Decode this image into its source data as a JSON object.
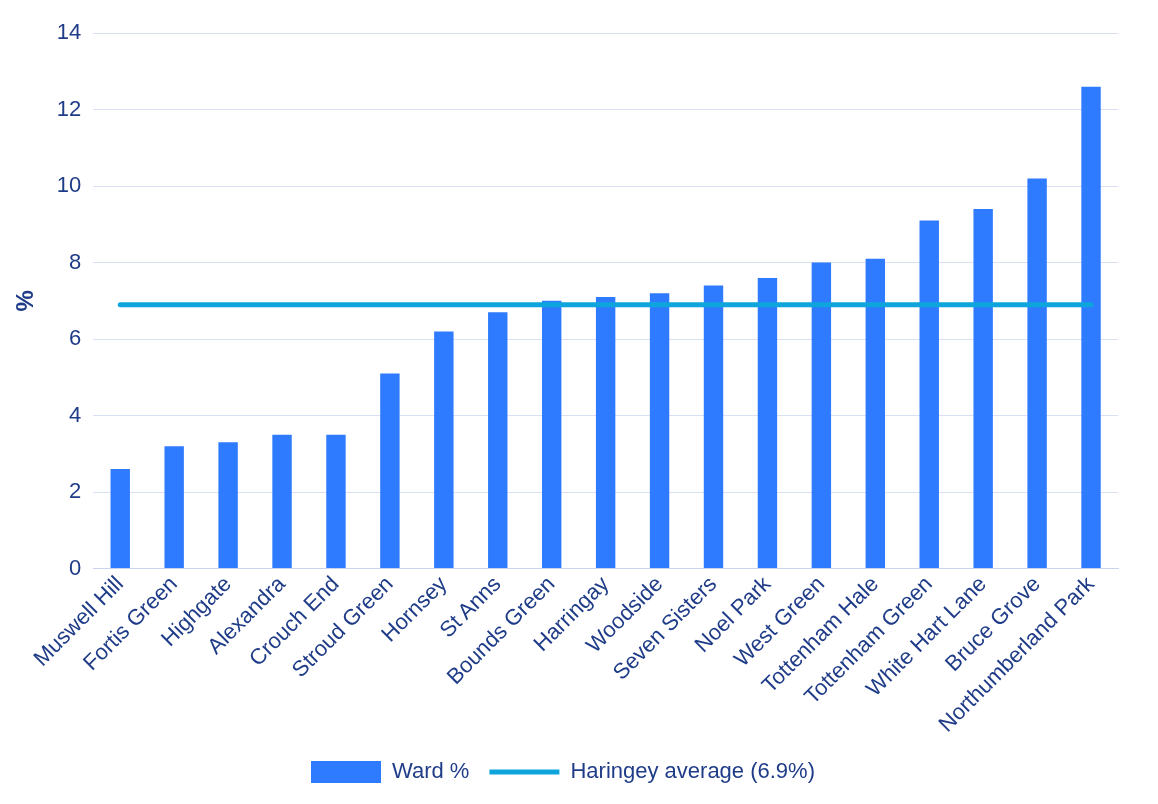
{
  "chart_data": {
    "type": "bar",
    "ylabel": "%",
    "categories": [
      "Muswell Hill",
      "Fortis Green",
      "Highgate",
      "Alexandra",
      "Crouch End",
      "Stroud Green",
      "Hornsey",
      "St Anns",
      "Bounds Green",
      "Harringay",
      "Woodside",
      "Seven Sisters",
      "Noel Park",
      "West Green",
      "Tottenham Hale",
      "Tottenham Green",
      "White Hart Lane",
      "Bruce Grove",
      "Northumberland Park"
    ],
    "series": [
      {
        "name": "Ward %",
        "color": "#2f7bff",
        "values": [
          2.6,
          3.2,
          3.3,
          3.5,
          3.5,
          5.1,
          6.2,
          6.7,
          7.0,
          7.1,
          7.2,
          7.4,
          7.6,
          8.0,
          8.1,
          9.1,
          9.4,
          10.2,
          12.6
        ]
      },
      {
        "name": "Haringey average (6.9%)",
        "type": "line",
        "color": "#0ea5dc",
        "marker": "none",
        "values": [
          6.9,
          6.9,
          6.9,
          6.9,
          6.9,
          6.9,
          6.9,
          6.9,
          6.9,
          6.9,
          6.9,
          6.9,
          6.9,
          6.9,
          6.9,
          6.9,
          6.9,
          6.9,
          6.9
        ]
      }
    ],
    "ylim": [
      0,
      14
    ],
    "yticks": [
      0,
      2,
      4,
      6,
      8,
      10,
      12,
      14
    ],
    "grid": "y",
    "legend": "bottom"
  }
}
